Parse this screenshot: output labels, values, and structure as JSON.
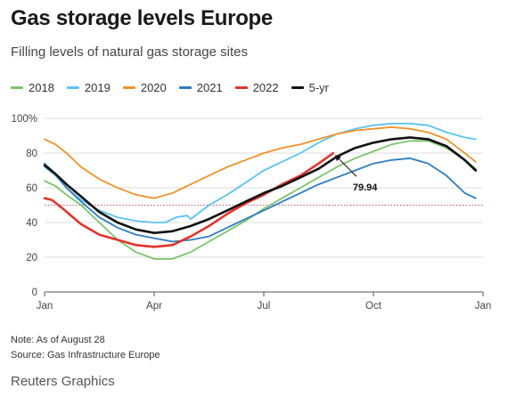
{
  "header": {
    "title": "Gas storage levels Europe",
    "subtitle": "Filling levels of natural gas storage sites"
  },
  "legend": [
    {
      "label": "2018",
      "color": "#7cc46c"
    },
    {
      "label": "2019",
      "color": "#5bc3f0"
    },
    {
      "label": "2020",
      "color": "#f0922b"
    },
    {
      "label": "2021",
      "color": "#2f7cc0"
    },
    {
      "label": "2022",
      "color": "#e0342b"
    },
    {
      "label": "5-yr",
      "color": "#111111"
    }
  ],
  "footer": {
    "note": "Note: As of August 28",
    "source": "Source: Gas Infrastructure Europe",
    "credit": "Reuters Graphics"
  },
  "chart_data": {
    "type": "line",
    "title": "Gas storage levels Europe",
    "subtitle": "Filling levels of natural gas storage sites",
    "x_tick_labels": [
      "Jan",
      "Apr",
      "Jul",
      "Oct",
      "Jan"
    ],
    "x_tick_months": [
      0,
      3,
      6,
      9,
      12
    ],
    "y_ticks": [
      0,
      20,
      40,
      60,
      80,
      100
    ],
    "y_tick_labels": [
      "0",
      "20",
      "40",
      "60",
      "80",
      "100%"
    ],
    "ylim": [
      0,
      100
    ],
    "xlim_months": [
      0,
      12
    ],
    "grid": true,
    "legend_position": "top",
    "reference_line": {
      "y": 50,
      "color": "#c0507a",
      "style": "dotted"
    },
    "annotation": {
      "text": "79.94",
      "x_month": 7.9,
      "y": 79.94
    },
    "series": [
      {
        "name": "2018",
        "color": "#7cc46c",
        "x_months": [
          0,
          0.3,
          0.6,
          1.0,
          1.5,
          2.0,
          2.5,
          3.0,
          3.5,
          4.0,
          4.5,
          5.0,
          5.5,
          6.0,
          6.5,
          7.0,
          7.5,
          8.0,
          8.5,
          9.0,
          9.5,
          10.0,
          10.5,
          11.0,
          11.5,
          11.8
        ],
        "values": [
          64,
          61,
          56,
          50,
          40,
          30,
          23,
          19,
          19,
          23,
          29,
          35,
          41,
          48,
          54,
          60,
          66,
          72,
          77,
          81,
          85,
          87,
          87,
          83,
          76,
          71
        ]
      },
      {
        "name": "2019",
        "color": "#5bc3f0",
        "x_months": [
          0,
          0.3,
          0.6,
          1.0,
          1.5,
          2.0,
          2.5,
          3.0,
          3.3,
          3.6,
          3.9,
          4.0,
          4.5,
          5.0,
          5.5,
          6.0,
          6.5,
          7.0,
          7.5,
          8.0,
          8.5,
          9.0,
          9.5,
          10.0,
          10.5,
          11.0,
          11.5,
          11.8
        ],
        "values": [
          72,
          67,
          60,
          53,
          47,
          43,
          41,
          40,
          40,
          43,
          44,
          42,
          50,
          56,
          63,
          70,
          75,
          80,
          86,
          91,
          94,
          96,
          97,
          97,
          96,
          92,
          89,
          88
        ]
      },
      {
        "name": "2020",
        "color": "#f0922b",
        "x_months": [
          0,
          0.3,
          0.6,
          1.0,
          1.5,
          2.0,
          2.5,
          3.0,
          3.5,
          4.0,
          4.5,
          5.0,
          5.5,
          6.0,
          6.5,
          7.0,
          7.5,
          8.0,
          8.5,
          9.0,
          9.5,
          10.0,
          10.5,
          11.0,
          11.5,
          11.8
        ],
        "values": [
          88,
          85,
          80,
          72,
          65,
          60,
          56,
          54,
          57,
          62,
          67,
          72,
          76,
          80,
          83,
          85,
          88,
          91,
          93,
          94,
          95,
          94,
          92,
          88,
          80,
          75
        ]
      },
      {
        "name": "2021",
        "color": "#2f7cc0",
        "x_months": [
          0,
          0.3,
          0.6,
          1.0,
          1.5,
          2.0,
          2.5,
          3.0,
          3.5,
          4.0,
          4.5,
          5.0,
          5.5,
          6.0,
          6.5,
          7.0,
          7.5,
          8.0,
          8.5,
          9.0,
          9.5,
          10.0,
          10.5,
          11.0,
          11.5,
          11.8
        ],
        "values": [
          74,
          68,
          60,
          52,
          43,
          37,
          33,
          31,
          29,
          30,
          32,
          37,
          42,
          47,
          52,
          57,
          62,
          66,
          70,
          74,
          76,
          77,
          74,
          67,
          57,
          54
        ]
      },
      {
        "name": "2022",
        "color": "#e0342b",
        "x_months": [
          0,
          0.2,
          0.5,
          1.0,
          1.5,
          2.0,
          2.5,
          3.0,
          3.5,
          4.0,
          4.5,
          5.0,
          5.5,
          6.0,
          6.5,
          7.0,
          7.5,
          7.9
        ],
        "values": [
          54,
          53,
          48,
          39,
          33,
          30,
          27,
          26,
          27,
          32,
          38,
          45,
          51,
          56,
          62,
          67,
          74,
          79.94
        ]
      },
      {
        "name": "5-yr",
        "color": "#111111",
        "x_months": [
          0,
          0.3,
          0.6,
          1.0,
          1.5,
          2.0,
          2.5,
          3.0,
          3.5,
          4.0,
          4.5,
          5.0,
          5.5,
          6.0,
          6.5,
          7.0,
          7.5,
          8.0,
          8.5,
          9.0,
          9.5,
          10.0,
          10.5,
          11.0,
          11.5,
          11.8
        ],
        "values": [
          73,
          68,
          62,
          55,
          46,
          40,
          36,
          34,
          35,
          38,
          42,
          47,
          52,
          57,
          61,
          66,
          71,
          78,
          83,
          86,
          88,
          89,
          88,
          84,
          76,
          70
        ]
      }
    ]
  }
}
